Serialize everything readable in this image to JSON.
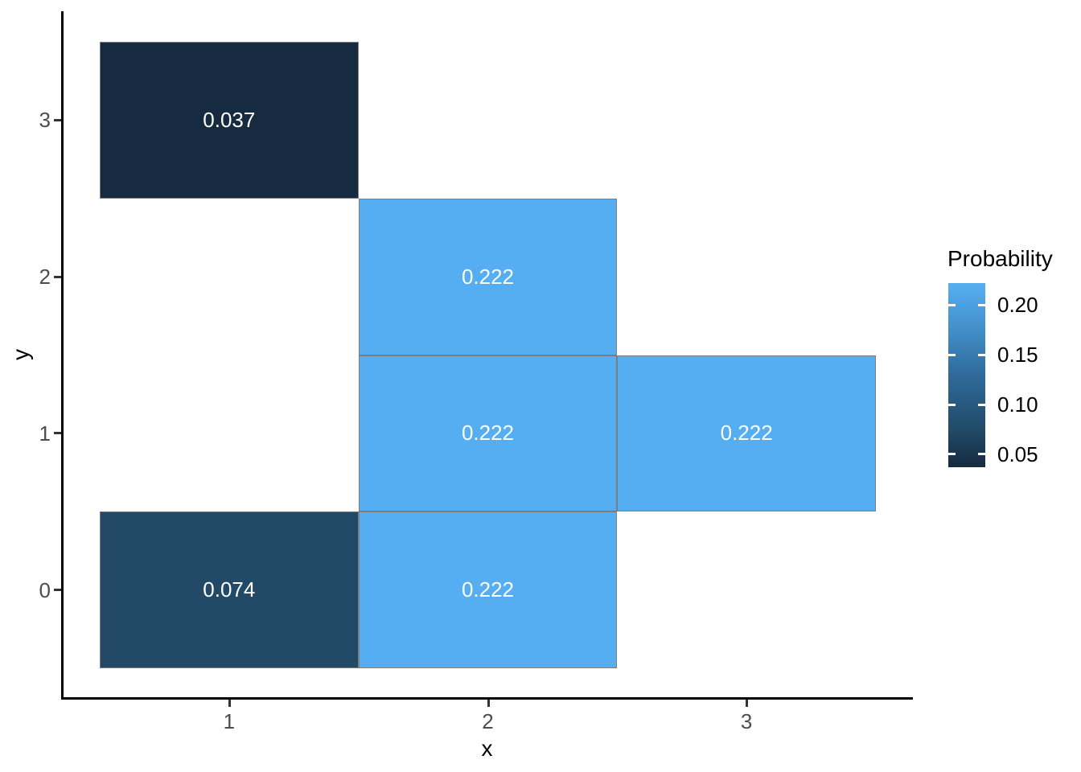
{
  "chart_data": {
    "type": "heatmap",
    "xlabel": "x",
    "ylabel": "y",
    "x_domain": [
      0.5,
      3.5
    ],
    "y_domain": [
      -0.5,
      3.5
    ],
    "grid": false,
    "x_ticks": [
      {
        "value": 1,
        "label": "1"
      },
      {
        "value": 2,
        "label": "2"
      },
      {
        "value": 3,
        "label": "3"
      }
    ],
    "y_ticks": [
      {
        "value": 0,
        "label": "0"
      },
      {
        "value": 1,
        "label": "1"
      },
      {
        "value": 2,
        "label": "2"
      },
      {
        "value": 3,
        "label": "3"
      }
    ],
    "tiles": [
      {
        "x": 1,
        "y": 3,
        "value": 0.037,
        "label": "0.037",
        "fill": "#162A40"
      },
      {
        "x": 1,
        "y": 0,
        "value": 0.074,
        "label": "0.074",
        "fill": "#224A67"
      },
      {
        "x": 2,
        "y": 2,
        "value": 0.222,
        "label": "0.222",
        "fill": "#56AEF2"
      },
      {
        "x": 2,
        "y": 1,
        "value": 0.222,
        "label": "0.222",
        "fill": "#56AEF2"
      },
      {
        "x": 2,
        "y": 0,
        "value": 0.222,
        "label": "0.222",
        "fill": "#56AEF2"
      },
      {
        "x": 3,
        "y": 1,
        "value": 0.222,
        "label": "0.222",
        "fill": "#56AEF2"
      }
    ],
    "legend": {
      "title": "Probability",
      "position": "right",
      "range": [
        0.037,
        0.222
      ],
      "ticks": [
        {
          "value": 0.2,
          "label": "0.20"
        },
        {
          "value": 0.15,
          "label": "0.15"
        },
        {
          "value": 0.1,
          "label": "0.10"
        },
        {
          "value": 0.05,
          "label": "0.05"
        }
      ],
      "gradient_stops": [
        {
          "color": "#162A40",
          "pos": "0%"
        },
        {
          "color": "#224A67",
          "pos": "20%"
        },
        {
          "color": "#2F6A9B",
          "pos": "50%"
        },
        {
          "color": "#4390C9",
          "pos": "75%"
        },
        {
          "color": "#56AEF2",
          "pos": "100%"
        }
      ]
    },
    "colors": {
      "tile_border": "#7d7d7d",
      "tile_text": "#ffffff",
      "axis_line": "#000000",
      "tick_label": "#4d4d4d",
      "low": "#162A40",
      "high": "#56AEF2"
    }
  }
}
